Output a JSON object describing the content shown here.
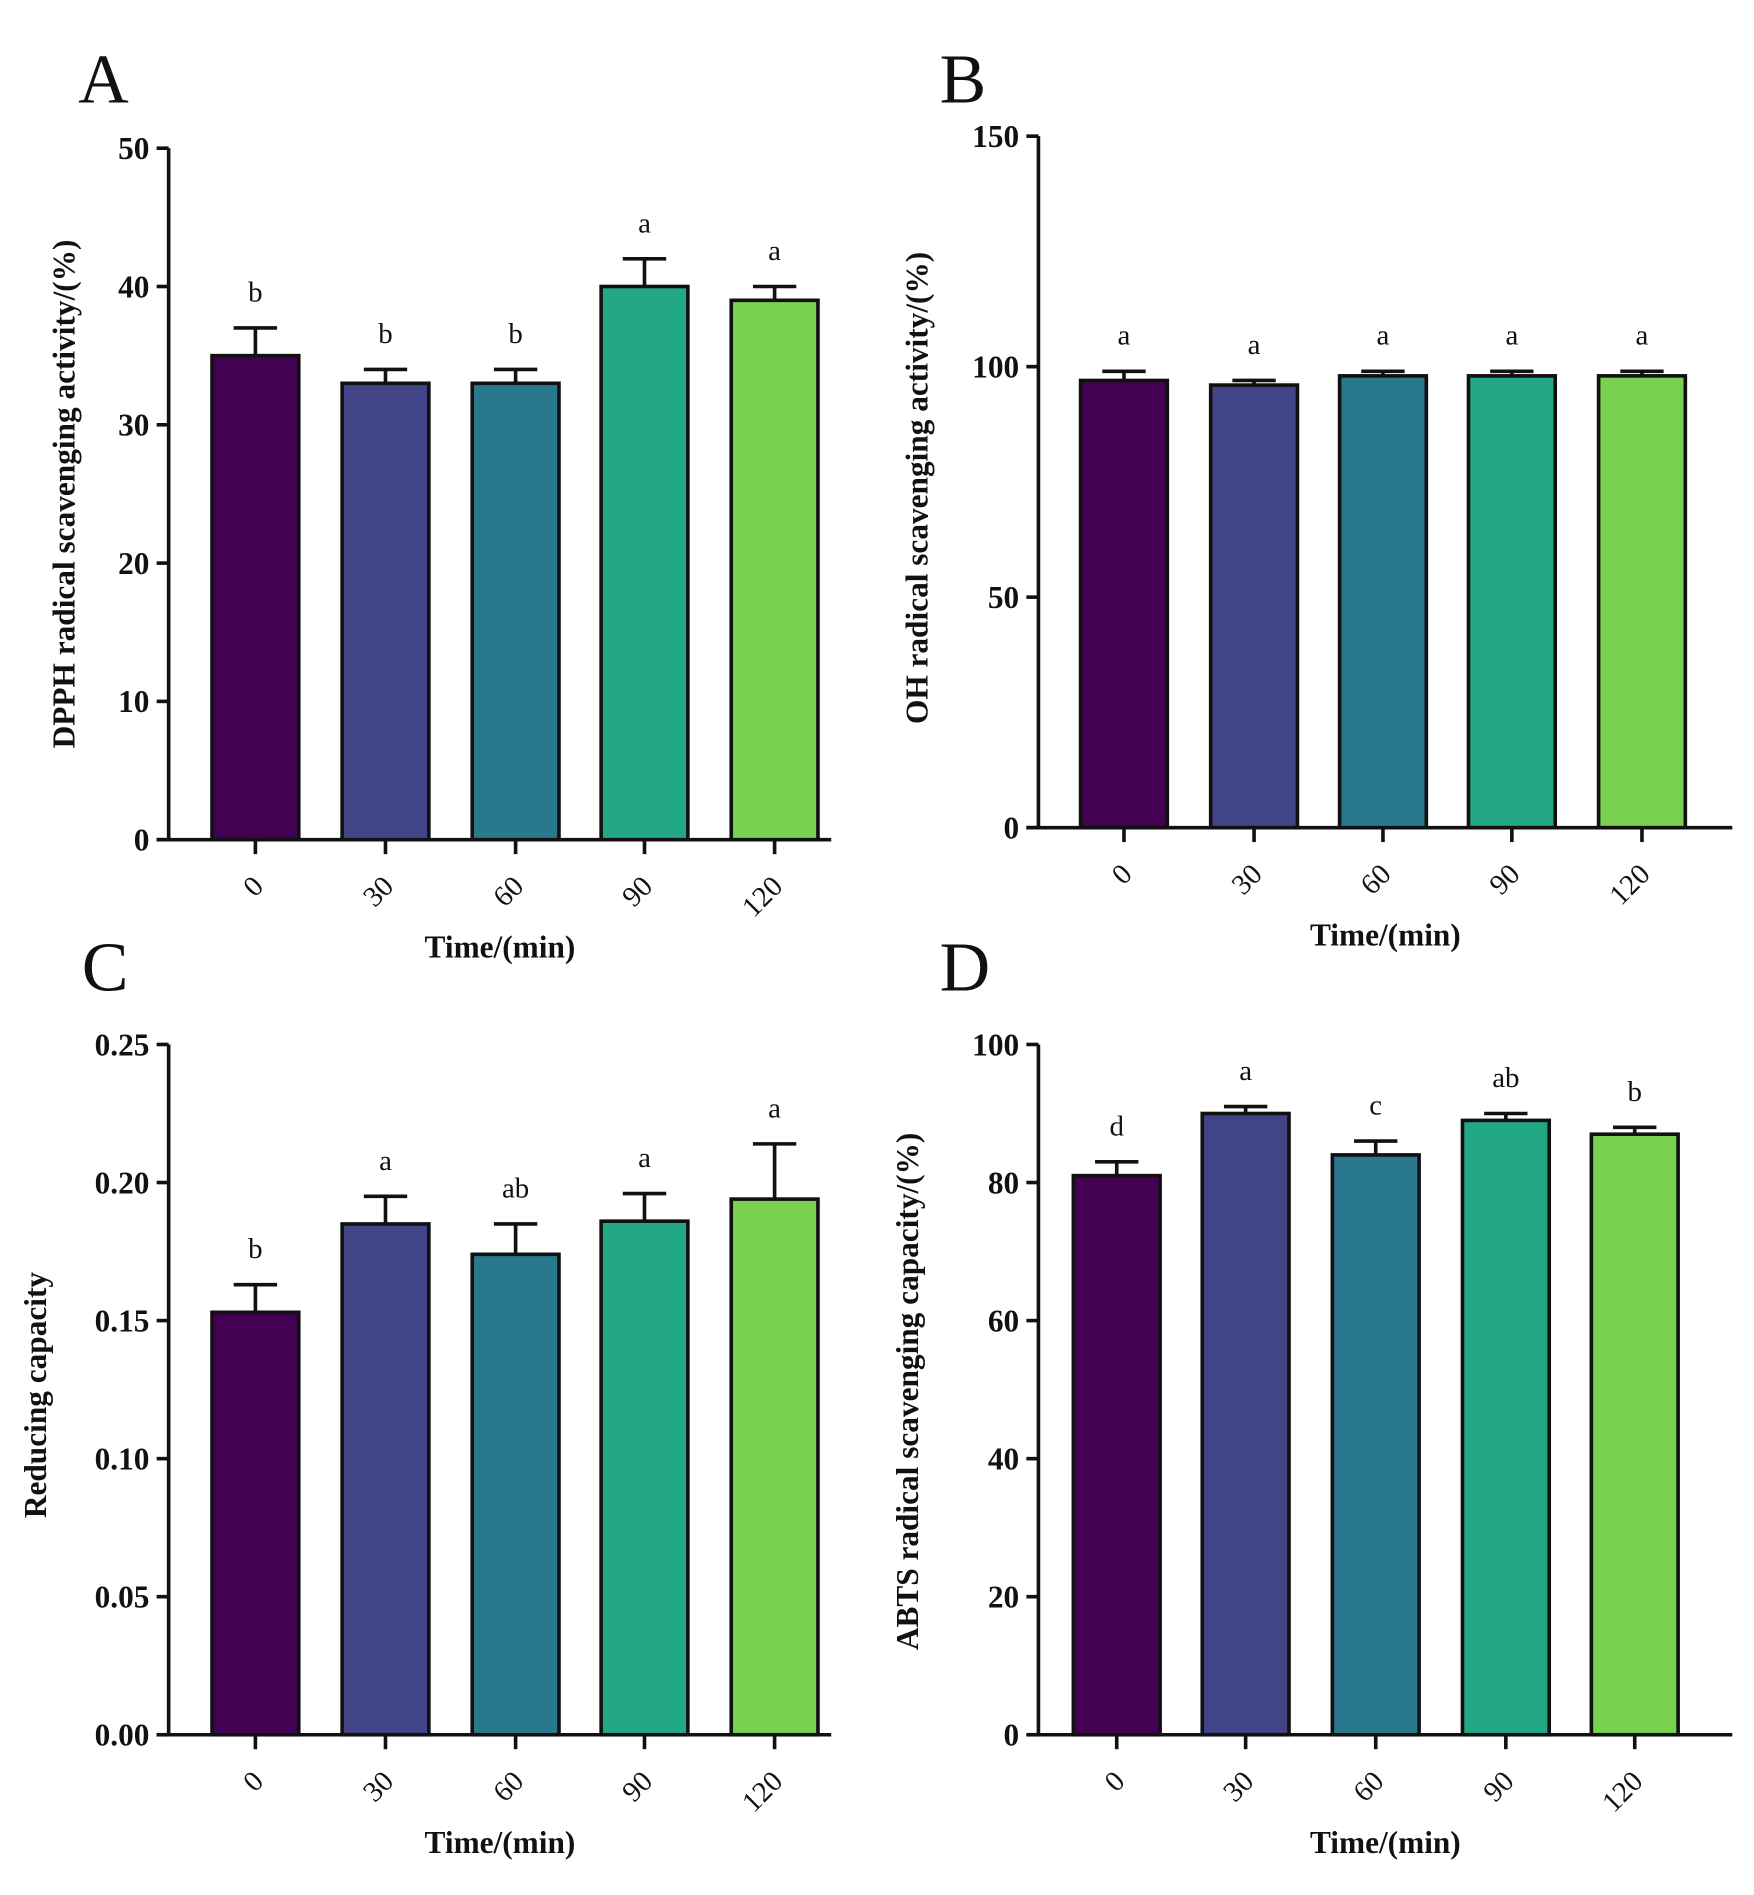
{
  "chart_data": [
    {
      "type": "bar",
      "panel": "A",
      "categories": [
        "0",
        "30",
        "60",
        "90",
        "120"
      ],
      "values": [
        35,
        33,
        33,
        40,
        39
      ],
      "errors": [
        2,
        1,
        1,
        2,
        1
      ],
      "significance": [
        "b",
        "b",
        "b",
        "a",
        "a"
      ],
      "xlabel": "Time/(min)",
      "ylabel": "DPPH radical scavenging activity/(%)",
      "ylim": [
        0,
        50
      ],
      "yticks": [
        0,
        10,
        20,
        30,
        40,
        50
      ],
      "ytick_labels": [
        "0",
        "10",
        "20",
        "30",
        "40",
        "50"
      ]
    },
    {
      "type": "bar",
      "panel": "B",
      "categories": [
        "0",
        "30",
        "60",
        "90",
        "120"
      ],
      "values": [
        97,
        96,
        98,
        98,
        98
      ],
      "errors": [
        2,
        1,
        1,
        1,
        1
      ],
      "significance": [
        "a",
        "a",
        "a",
        "a",
        "a"
      ],
      "xlabel": "Time/(min)",
      "ylabel": "OH radical scavenging activity/(%)",
      "ylim": [
        0,
        150
      ],
      "yticks": [
        0,
        50,
        100,
        150
      ],
      "ytick_labels": [
        "0",
        "50",
        "100",
        "150"
      ]
    },
    {
      "type": "bar",
      "panel": "C",
      "categories": [
        "0",
        "30",
        "60",
        "90",
        "120"
      ],
      "values": [
        0.153,
        0.185,
        0.174,
        0.186,
        0.194
      ],
      "errors": [
        0.01,
        0.01,
        0.011,
        0.01,
        0.02
      ],
      "significance": [
        "b",
        "a",
        "ab",
        "a",
        "a"
      ],
      "xlabel": "Time/(min)",
      "ylabel": "Reducing capacity",
      "ylim": [
        0,
        0.25
      ],
      "yticks": [
        0,
        0.05,
        0.1,
        0.15,
        0.2,
        0.25
      ],
      "ytick_labels": [
        "0.00",
        "0.05",
        "0.10",
        "0.15",
        "0.20",
        "0.25"
      ]
    },
    {
      "type": "bar",
      "panel": "D",
      "categories": [
        "0",
        "30",
        "60",
        "90",
        "120"
      ],
      "values": [
        81,
        90,
        84,
        89,
        87
      ],
      "errors": [
        2,
        1,
        2,
        1,
        1
      ],
      "significance": [
        "d",
        "a",
        "c",
        "ab",
        "b"
      ],
      "xlabel": "Time/(min)",
      "ylabel": "ABTS radical scavenging  capacity/(%)",
      "ylim": [
        0,
        100
      ],
      "yticks": [
        0,
        20,
        40,
        60,
        80,
        100
      ],
      "ytick_labels": [
        "0",
        "20",
        "40",
        "60",
        "80",
        "100"
      ]
    }
  ],
  "colors": [
    "#440154",
    "#414487",
    "#2a788e",
    "#22a884",
    "#7ad151"
  ]
}
